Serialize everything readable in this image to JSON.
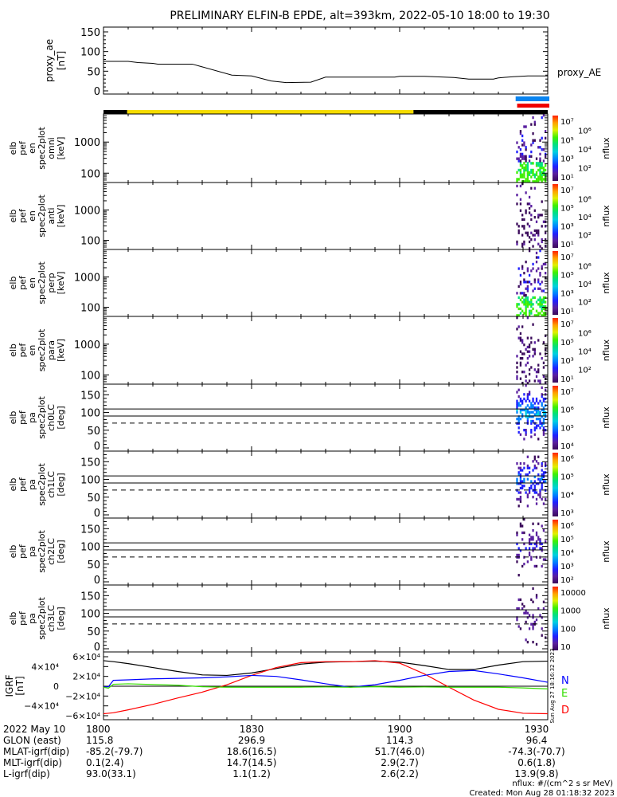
{
  "title": "PRELIMINARY ELFIN-B EPDE, alt=393km, 2022-05-10 18:00 to 19:30",
  "colors": {
    "orbit_blue": "#0a84f0",
    "orbit_red": "#f00000",
    "sun": "#f5dc00",
    "shadow": "#000000",
    "N": "#0000ff",
    "E": "#33dd00",
    "D": "#ff0000",
    "total": "#000000"
  },
  "chart_data": [
    {
      "type": "line",
      "name": "proxy_ae",
      "ylabel": [
        "proxy_ae",
        "[nT]"
      ],
      "legend": "proxy_AE",
      "ylim": [
        0,
        150
      ],
      "yticks": [
        "0",
        "50",
        "100",
        "150"
      ],
      "yticks_v": [
        0,
        50,
        100,
        150
      ],
      "x_minutes": [
        0,
        5,
        7,
        10,
        11,
        18,
        26,
        30,
        34,
        37,
        42,
        45,
        59,
        60,
        65,
        71,
        74,
        79,
        80,
        83,
        86,
        90
      ],
      "values": [
        75,
        75,
        72,
        70,
        68,
        68,
        40,
        38,
        25,
        21,
        22,
        35,
        35,
        37,
        37,
        34,
        30,
        30,
        33,
        36,
        38,
        38
      ]
    },
    {
      "type": "bar",
      "name": "orbit-bars",
      "segments": [
        {
          "label": "shadow",
          "from": 0,
          "to": 4.8
        },
        {
          "label": "sunlit",
          "from": 4.8,
          "to": 62.8
        },
        {
          "label": "shadow",
          "from": 62.8,
          "to": 90
        }
      ],
      "blue_from": 83.5,
      "red_from": 83.8
    },
    {
      "type": "heatmap",
      "name": "spec-omni",
      "ylabel": [
        "elb",
        "pef",
        "en",
        "spec2plot",
        "omni",
        "[keV]"
      ],
      "yscale": "log",
      "ylim": [
        50,
        8000
      ],
      "yticks": [
        "100",
        "1000"
      ],
      "yticks_v": [
        100,
        1000
      ],
      "cbar": [
        "10⁷",
        "10⁶",
        "10⁵",
        "10⁴",
        "10³",
        "10²",
        "10¹"
      ],
      "cbar_label": "nflux",
      "intensity": 0.9
    },
    {
      "type": "heatmap",
      "name": "spec-anti",
      "ylabel": [
        "elb",
        "pef",
        "en",
        "spec2plot",
        "anti",
        "[keV]"
      ],
      "yscale": "log",
      "ylim": [
        50,
        8000
      ],
      "yticks": [
        "100",
        "1000"
      ],
      "yticks_v": [
        100,
        1000
      ],
      "cbar": [
        "10⁷",
        "10⁶",
        "10⁵",
        "10⁴",
        "10³",
        "10²",
        "10¹"
      ],
      "cbar_label": "nflux",
      "intensity": 0.35
    },
    {
      "type": "heatmap",
      "name": "spec-perp",
      "ylabel": [
        "elb",
        "pef",
        "en",
        "spec2plot",
        "perp",
        "[keV]"
      ],
      "yscale": "log",
      "ylim": [
        50,
        8000
      ],
      "yticks": [
        "100",
        "1000"
      ],
      "yticks_v": [
        100,
        1000
      ],
      "cbar": [
        "10⁷",
        "10⁶",
        "10⁵",
        "10⁴",
        "10³",
        "10²",
        "10¹"
      ],
      "cbar_label": "nflux",
      "intensity": 0.9
    },
    {
      "type": "heatmap",
      "name": "spec-para",
      "ylabel": [
        "elb",
        "pef",
        "en",
        "spec2plot",
        "para",
        "[keV]"
      ],
      "yscale": "log",
      "ylim": [
        50,
        8000
      ],
      "yticks": [
        "100",
        "1000"
      ],
      "yticks_v": [
        100,
        1000
      ],
      "cbar": [
        "10⁷",
        "10⁶",
        "10⁵",
        "10⁴",
        "10³",
        "10²",
        "10¹"
      ],
      "cbar_label": "nflux",
      "intensity": 0.3
    },
    {
      "type": "heatmap",
      "name": "pa-ch0",
      "ylabel": [
        "elb",
        "pef",
        "pa",
        "spec2plot",
        "ch0LC",
        "[deg]"
      ],
      "yscale": "linear",
      "ylim": [
        0,
        180
      ],
      "yticks": [
        "0",
        "50",
        "100",
        "150"
      ],
      "yticks_v": [
        0,
        50,
        100,
        150
      ],
      "cbar": [
        "10⁷",
        "10⁶",
        "10⁵",
        "10⁴"
      ],
      "cbar_label": "nflux",
      "intensity": 0.8,
      "lc_lines": [
        110,
        90
      ],
      "lc_dashed": 70
    },
    {
      "type": "heatmap",
      "name": "pa-ch1",
      "ylabel": [
        "elb",
        "pef",
        "pa",
        "spec2plot",
        "ch1LC",
        "[deg]"
      ],
      "yscale": "linear",
      "ylim": [
        0,
        180
      ],
      "yticks": [
        "0",
        "50",
        "100",
        "150"
      ],
      "yticks_v": [
        0,
        50,
        100,
        150
      ],
      "cbar": [
        "10⁶",
        "10⁵",
        "10⁴",
        "10³"
      ],
      "cbar_label": "nflux",
      "intensity": 0.6,
      "lc_lines": [
        110,
        90
      ],
      "lc_dashed": 70
    },
    {
      "type": "heatmap",
      "name": "pa-ch2",
      "ylabel": [
        "elb",
        "pef",
        "pa",
        "spec2plot",
        "ch2LC",
        "[deg]"
      ],
      "yscale": "linear",
      "ylim": [
        0,
        180
      ],
      "yticks": [
        "0",
        "50",
        "100",
        "150"
      ],
      "yticks_v": [
        0,
        50,
        100,
        150
      ],
      "cbar": [
        "10⁶",
        "10⁵",
        "10⁴",
        "10³",
        "10²"
      ],
      "cbar_label": "nflux",
      "intensity": 0.3,
      "lc_lines": [
        110,
        90
      ],
      "lc_dashed": 70
    },
    {
      "type": "heatmap",
      "name": "pa-ch3",
      "ylabel": [
        "elb",
        "pef",
        "pa",
        "spec2plot",
        "ch3LC",
        "[deg]"
      ],
      "yscale": "linear",
      "ylim": [
        0,
        180
      ],
      "yticks": [
        "0",
        "50",
        "100",
        "150"
      ],
      "yticks_v": [
        0,
        50,
        100,
        150
      ],
      "cbar": [
        "10000",
        "1000",
        "100",
        "10"
      ],
      "cbar_label": "nflux",
      "intensity": 0.25,
      "lc_lines": [
        110,
        90
      ],
      "lc_dashed": 70
    },
    {
      "type": "line",
      "name": "igrf",
      "ylabel": [
        "IGRF",
        "[nT]"
      ],
      "ylim": [
        -65000,
        65000
      ],
      "yticks": [
        "6×10⁴",
        "4×10⁴",
        "2×10⁴",
        "0",
        "−2×10⁴",
        "−4×10⁴",
        "−6×10⁴"
      ],
      "yticks_v": [
        60000,
        40000,
        20000,
        0,
        -20000,
        -40000,
        -60000
      ],
      "x_minutes": [
        0,
        1,
        2,
        5,
        10,
        15,
        20,
        25,
        30,
        35,
        40,
        45,
        50,
        55,
        60,
        65,
        70,
        75,
        80,
        85,
        90
      ],
      "series": [
        {
          "name": "total",
          "values": [
            52000,
            51000,
            50000,
            46000,
            38000,
            30000,
            23000,
            22000,
            27000,
            36000,
            45000,
            49000,
            50000,
            51000,
            49000,
            42000,
            34000,
            34000,
            43000,
            50000,
            51000
          ]
        },
        {
          "name": "D",
          "legend": "D",
          "values": [
            -56000,
            -55000,
            -54000,
            -48000,
            -37000,
            -24000,
            -12000,
            3000,
            22000,
            38000,
            48000,
            50000,
            50000,
            52000,
            47000,
            25000,
            -2000,
            -28000,
            -47000,
            -55000,
            -56000
          ]
        },
        {
          "name": "N",
          "legend": "N",
          "values": [
            -1500,
            -1000,
            12000,
            13000,
            15000,
            16000,
            17000,
            19000,
            22000,
            20000,
            13000,
            5000,
            -2000,
            3000,
            12000,
            22000,
            30000,
            32000,
            25000,
            17000,
            8000
          ]
        },
        {
          "name": "E",
          "legend": "E",
          "values": [
            -2000,
            -4000,
            4000,
            5000,
            3500,
            2000,
            -1000,
            -2000,
            -2000,
            -2000,
            -2000,
            -1500,
            -2000,
            -1000,
            -2000,
            -1500,
            -2000,
            -2000,
            -2000,
            -3500,
            -5500
          ]
        }
      ],
      "side_text": "Sun Aug 27 18:16:32 2023"
    }
  ],
  "xaxis": {
    "times": [
      "1800",
      "1830",
      "1900",
      "1930"
    ],
    "rows": [
      {
        "label": "2022 May 10",
        "values": [
          "1800",
          "1830",
          "1900",
          "1930"
        ]
      },
      {
        "label": "GLON (east)",
        "values": [
          "115.8",
          "296.9",
          "114.3",
          "96.4"
        ]
      },
      {
        "label": "MLAT-igrf(dip)",
        "values": [
          "-85.2(-79.7)",
          "18.6(16.5)",
          "51.7(46.0)",
          "-74.3(-70.7)"
        ]
      },
      {
        "label": "MLT-igrf(dip)",
        "values": [
          "0.1(2.4)",
          "14.7(14.5)",
          "2.9(2.7)",
          "0.6(1.8)"
        ]
      },
      {
        "label": "L-igrf(dip)",
        "values": [
          "93.0(33.1)",
          "1.1(1.2)",
          "2.6(2.2)",
          "13.9(9.8)"
        ]
      }
    ]
  },
  "footer": {
    "units": "nflux: #/(cm^2 s sr MeV)",
    "created": "Created: Mon Aug 28 01:18:32 2023"
  }
}
